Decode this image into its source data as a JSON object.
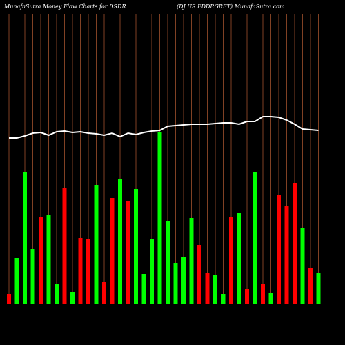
{
  "chart_data": {
    "type": "bar",
    "title": "MunafaSutra  Money Flow  Charts for DSDR",
    "subtitle": "(DJ US FDDRGRET) MunafaSutra.com",
    "ylim": [
      0,
      280
    ],
    "grid": true,
    "grid_color": "#a0522d",
    "background": "#000000",
    "series": [
      {
        "type": "bar",
        "values": [
          14,
          66,
          191,
          79,
          125,
          129,
          29,
          168,
          17,
          95,
          94,
          172,
          31,
          153,
          180,
          148,
          166,
          43,
          93,
          249,
          120,
          59,
          68,
          124,
          85,
          44,
          41,
          14,
          125,
          131,
          21,
          191,
          28,
          16,
          157,
          142,
          175,
          109,
          51,
          45
        ],
        "colors": [
          "#ff0000",
          "#00ff00",
          "#00ff00",
          "#00ff00",
          "#ff0000",
          "#00ff00",
          "#00ff00",
          "#ff0000",
          "#00ff00",
          "#ff0000",
          "#ff0000",
          "#00ff00",
          "#ff0000",
          "#ff0000",
          "#00ff00",
          "#ff0000",
          "#00ff00",
          "#00ff00",
          "#00ff00",
          "#00ff00",
          "#00ff00",
          "#00ff00",
          "#00ff00",
          "#00ff00",
          "#ff0000",
          "#ff0000",
          "#00ff00",
          "#00ff00",
          "#ff0000",
          "#00ff00",
          "#ff0000",
          "#00ff00",
          "#ff0000",
          "#00ff00",
          "#ff0000",
          "#ff0000",
          "#ff0000",
          "#00ff00",
          "#ff0000",
          "#00ff00"
        ]
      },
      {
        "type": "line",
        "color": "#ffffff",
        "values": [
          240,
          240,
          243,
          247,
          248,
          244,
          249,
          250,
          248,
          249,
          247,
          246,
          244,
          247,
          242,
          247,
          245,
          248,
          250,
          251,
          257,
          258,
          259,
          260,
          260,
          260,
          261,
          262,
          262,
          260,
          264,
          264,
          271,
          271,
          270,
          266,
          260,
          253,
          252,
          251
        ]
      }
    ]
  }
}
